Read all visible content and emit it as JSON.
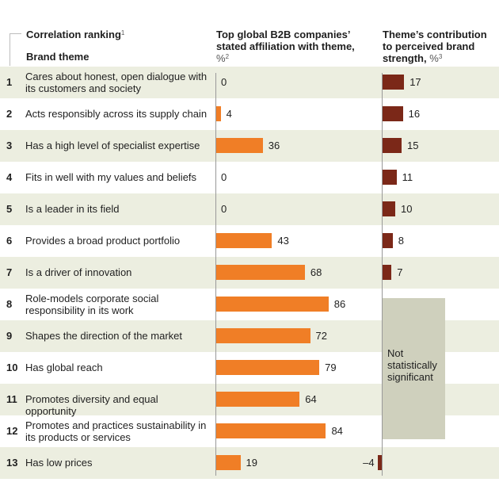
{
  "headers": {
    "ranking_label": "Correlation ranking",
    "ranking_note": "1",
    "theme_label": "Brand theme",
    "affiliation_title": "Top global B2B companies’ stated affiliation with theme,",
    "affiliation_unit": "%",
    "affiliation_note": "2",
    "contribution_title": "Theme’s contribution to perceived brand strength,",
    "contribution_unit": "%",
    "contribution_note": "3"
  },
  "not_significant_label": "Not statistically significant",
  "colors": {
    "affiliation_bar": "#f07e26",
    "contribution_bar": "#7b2818",
    "row_band": "#eceee0",
    "not_significant_box": "#cfd0bd"
  },
  "chart_data": {
    "type": "bar",
    "orientation": "horizontal",
    "categories": [
      "Cares about honest, open dialogue with its customers and society",
      "Acts responsibly across its supply chain",
      "Has a high level of specialist expertise",
      "Fits in well with my values and beliefs",
      "Is a leader in its field",
      "Provides a broad product portfolio",
      "Is a driver of innovation",
      "Role-models corporate social responsibility in its work",
      "Shapes the direction of the market",
      "Has global reach",
      "Promotes diversity and equal opportunity",
      "Promotes and practices sustainability in its products or services",
      "Has low prices"
    ],
    "ranks": [
      1,
      2,
      3,
      4,
      5,
      6,
      7,
      8,
      9,
      10,
      11,
      12,
      13
    ],
    "series": [
      {
        "name": "Top global B2B companies’ stated affiliation with theme, %",
        "values": [
          0,
          4,
          36,
          0,
          0,
          43,
          68,
          86,
          72,
          79,
          64,
          84,
          19
        ]
      },
      {
        "name": "Theme’s contribution to perceived brand strength, %",
        "values": [
          17,
          16,
          15,
          11,
          10,
          8,
          7,
          null,
          null,
          null,
          null,
          null,
          -4
        ],
        "display": [
          "17",
          "16",
          "15",
          "11",
          "10",
          "8",
          "7",
          "",
          "",
          "",
          "",
          "",
          "–4"
        ]
      }
    ]
  }
}
